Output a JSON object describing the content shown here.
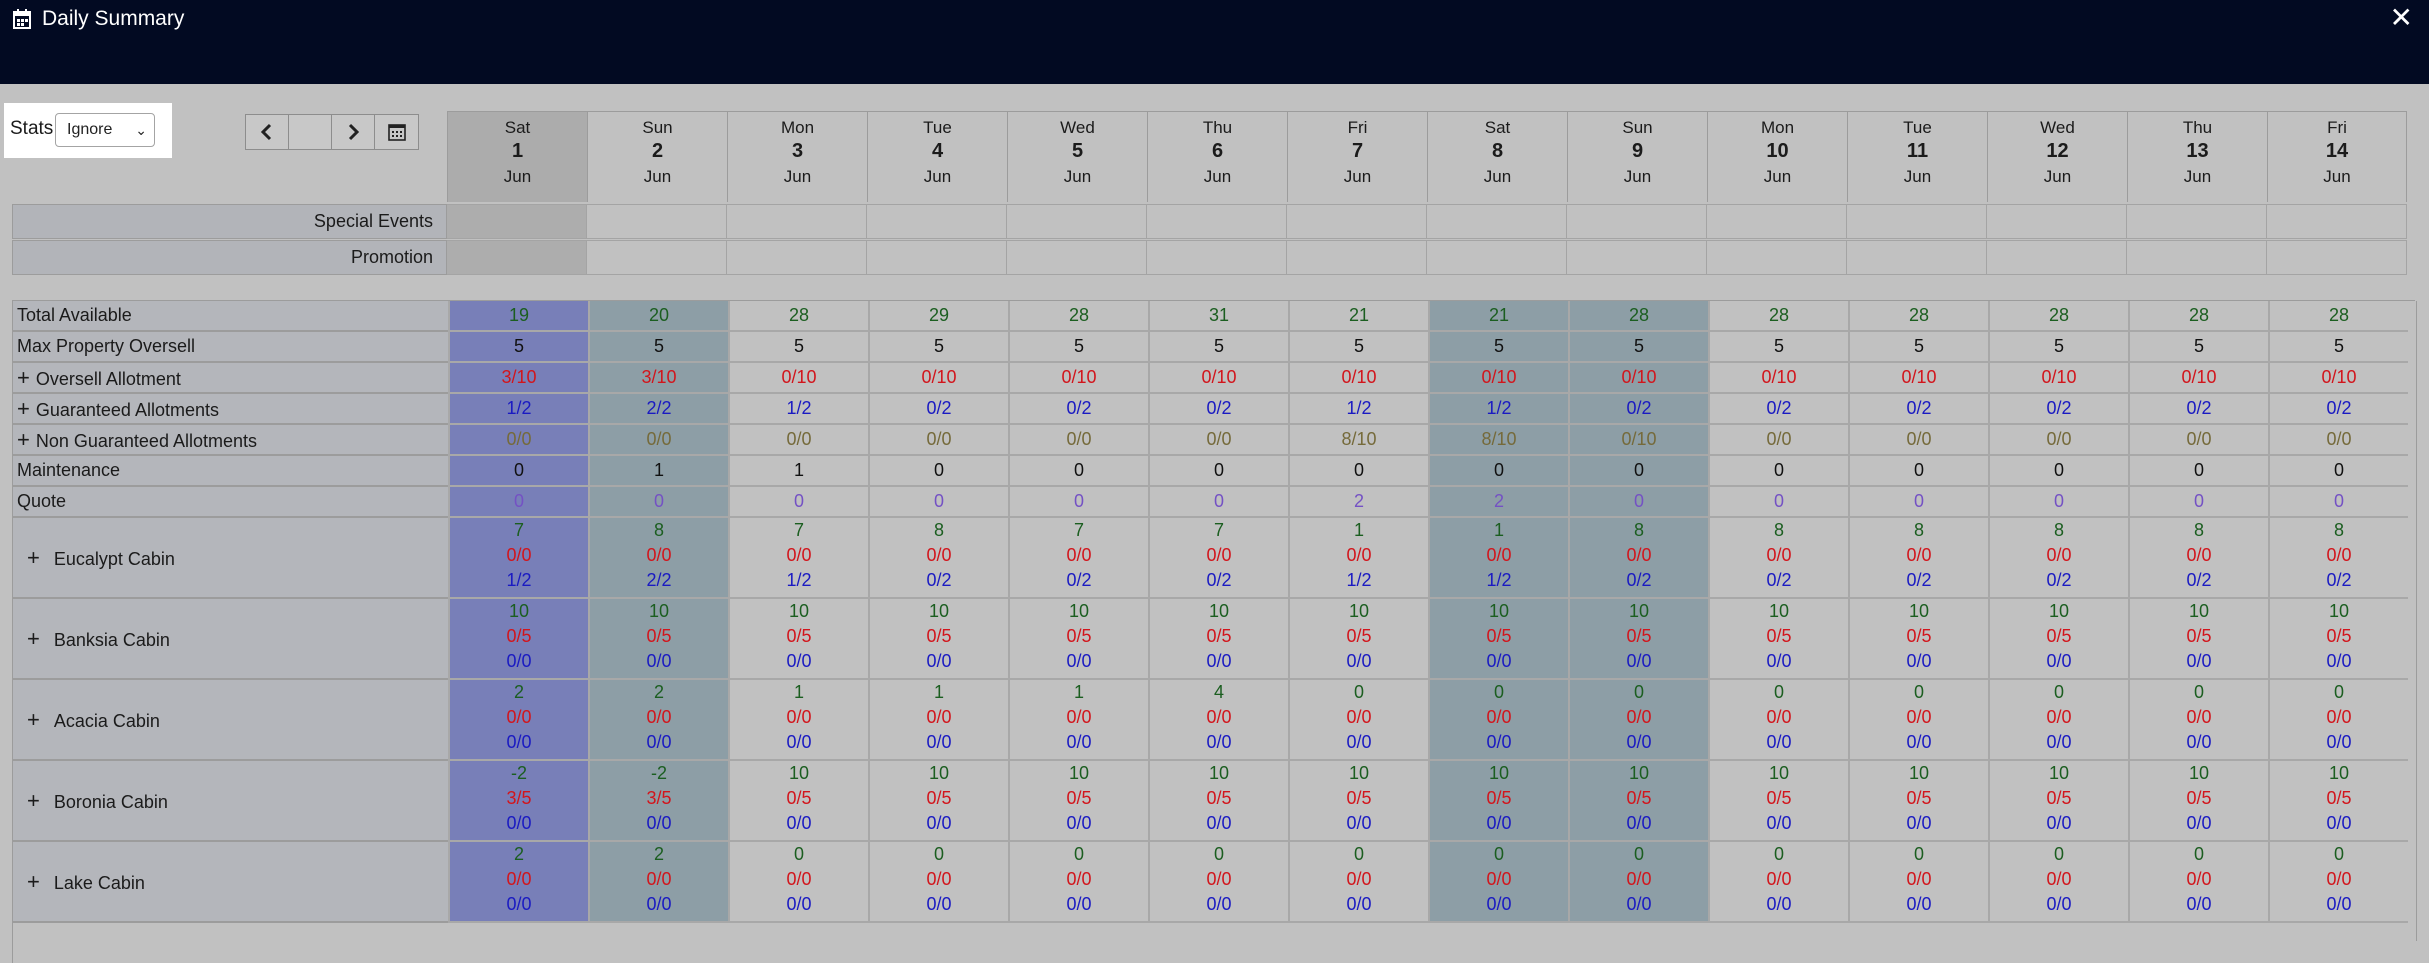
{
  "window": {
    "title": "Daily Summary",
    "close_icon": "close-icon",
    "title_icon": "calendar-icon"
  },
  "stats": {
    "label": "Stats",
    "selected": "Ignore"
  },
  "nav": {
    "prev_icon": "chevron-left-icon",
    "next_icon": "chevron-right-icon",
    "calendar_icon": "calendar-icon"
  },
  "dates": [
    {
      "dow": "Sat",
      "day": "1",
      "mon": "Jun"
    },
    {
      "dow": "Sun",
      "day": "2",
      "mon": "Jun"
    },
    {
      "dow": "Mon",
      "day": "3",
      "mon": "Jun"
    },
    {
      "dow": "Tue",
      "day": "4",
      "mon": "Jun"
    },
    {
      "dow": "Wed",
      "day": "5",
      "mon": "Jun"
    },
    {
      "dow": "Thu",
      "day": "6",
      "mon": "Jun"
    },
    {
      "dow": "Fri",
      "day": "7",
      "mon": "Jun"
    },
    {
      "dow": "Sat",
      "day": "8",
      "mon": "Jun"
    },
    {
      "dow": "Sun",
      "day": "9",
      "mon": "Jun"
    },
    {
      "dow": "Mon",
      "day": "10",
      "mon": "Jun"
    },
    {
      "dow": "Tue",
      "day": "11",
      "mon": "Jun"
    },
    {
      "dow": "Wed",
      "day": "12",
      "mon": "Jun"
    },
    {
      "dow": "Thu",
      "day": "13",
      "mon": "Jun"
    },
    {
      "dow": "Fri",
      "day": "14",
      "mon": "Jun"
    }
  ],
  "events": [
    {
      "label": "Special Events"
    },
    {
      "label": "Promotion"
    }
  ],
  "rows": [
    {
      "label": "Total Available",
      "expand": false,
      "color": "green",
      "values": [
        "19",
        "20",
        "28",
        "29",
        "28",
        "31",
        "21",
        "21",
        "28",
        "28",
        "28",
        "28",
        "28",
        "28"
      ]
    },
    {
      "label": "Max Property Oversell",
      "expand": false,
      "color": "black",
      "values": [
        "5",
        "5",
        "5",
        "5",
        "5",
        "5",
        "5",
        "5",
        "5",
        "5",
        "5",
        "5",
        "5",
        "5"
      ]
    },
    {
      "label": "Oversell Allotment",
      "expand": true,
      "color": "red",
      "values": [
        "3/10",
        "3/10",
        "0/10",
        "0/10",
        "0/10",
        "0/10",
        "0/10",
        "0/10",
        "0/10",
        "0/10",
        "0/10",
        "0/10",
        "0/10",
        "0/10"
      ]
    },
    {
      "label": "Guaranteed Allotments",
      "expand": true,
      "color": "blue",
      "values": [
        "1/2",
        "2/2",
        "1/2",
        "0/2",
        "0/2",
        "0/2",
        "1/2",
        "1/2",
        "0/2",
        "0/2",
        "0/2",
        "0/2",
        "0/2",
        "0/2"
      ]
    },
    {
      "label": "Non Guaranteed Allotments",
      "expand": true,
      "color": "olive",
      "values": [
        "0/0",
        "0/0",
        "0/0",
        "0/0",
        "0/0",
        "0/0",
        "8/10",
        "8/10",
        "0/10",
        "0/0",
        "0/0",
        "0/0",
        "0/0",
        "0/0"
      ]
    },
    {
      "label": "Maintenance",
      "expand": false,
      "color": "black",
      "values": [
        "0",
        "1",
        "1",
        "0",
        "0",
        "0",
        "0",
        "0",
        "0",
        "0",
        "0",
        "0",
        "0",
        "0"
      ]
    },
    {
      "label": "Quote",
      "expand": false,
      "color": "purple",
      "values": [
        "0",
        "0",
        "0",
        "0",
        "0",
        "0",
        "2",
        "2",
        "0",
        "0",
        "0",
        "0",
        "0",
        "0"
      ]
    }
  ],
  "rooms": [
    {
      "label": "Eucalypt Cabin",
      "avail": [
        "7",
        "8",
        "7",
        "8",
        "7",
        "7",
        "1",
        "1",
        "8",
        "8",
        "8",
        "8",
        "8",
        "8"
      ],
      "over": [
        "0/0",
        "0/0",
        "0/0",
        "0/0",
        "0/0",
        "0/0",
        "0/0",
        "0/0",
        "0/0",
        "0/0",
        "0/0",
        "0/0",
        "0/0",
        "0/0"
      ],
      "guar": [
        "1/2",
        "2/2",
        "1/2",
        "0/2",
        "0/2",
        "0/2",
        "1/2",
        "1/2",
        "0/2",
        "0/2",
        "0/2",
        "0/2",
        "0/2",
        "0/2"
      ]
    },
    {
      "label": "Banksia Cabin",
      "avail": [
        "10",
        "10",
        "10",
        "10",
        "10",
        "10",
        "10",
        "10",
        "10",
        "10",
        "10",
        "10",
        "10",
        "10"
      ],
      "over": [
        "0/5",
        "0/5",
        "0/5",
        "0/5",
        "0/5",
        "0/5",
        "0/5",
        "0/5",
        "0/5",
        "0/5",
        "0/5",
        "0/5",
        "0/5",
        "0/5"
      ],
      "guar": [
        "0/0",
        "0/0",
        "0/0",
        "0/0",
        "0/0",
        "0/0",
        "0/0",
        "0/0",
        "0/0",
        "0/0",
        "0/0",
        "0/0",
        "0/0",
        "0/0"
      ]
    },
    {
      "label": "Acacia Cabin",
      "avail": [
        "2",
        "2",
        "1",
        "1",
        "1",
        "4",
        "0",
        "0",
        "0",
        "0",
        "0",
        "0",
        "0",
        "0"
      ],
      "over": [
        "0/0",
        "0/0",
        "0/0",
        "0/0",
        "0/0",
        "0/0",
        "0/0",
        "0/0",
        "0/0",
        "0/0",
        "0/0",
        "0/0",
        "0/0",
        "0/0"
      ],
      "guar": [
        "0/0",
        "0/0",
        "0/0",
        "0/0",
        "0/0",
        "0/0",
        "0/0",
        "0/0",
        "0/0",
        "0/0",
        "0/0",
        "0/0",
        "0/0",
        "0/0"
      ]
    },
    {
      "label": "Boronia Cabin",
      "avail": [
        "-2",
        "-2",
        "10",
        "10",
        "10",
        "10",
        "10",
        "10",
        "10",
        "10",
        "10",
        "10",
        "10",
        "10"
      ],
      "over": [
        "3/5",
        "3/5",
        "0/5",
        "0/5",
        "0/5",
        "0/5",
        "0/5",
        "0/5",
        "0/5",
        "0/5",
        "0/5",
        "0/5",
        "0/5",
        "0/5"
      ],
      "guar": [
        "0/0",
        "0/0",
        "0/0",
        "0/0",
        "0/0",
        "0/0",
        "0/0",
        "0/0",
        "0/0",
        "0/0",
        "0/0",
        "0/0",
        "0/0",
        "0/0"
      ]
    },
    {
      "label": "Lake Cabin",
      "avail": [
        "2",
        "2",
        "0",
        "0",
        "0",
        "0",
        "0",
        "0",
        "0",
        "0",
        "0",
        "0",
        "0",
        "0"
      ],
      "over": [
        "0/0",
        "0/0",
        "0/0",
        "0/0",
        "0/0",
        "0/0",
        "0/0",
        "0/0",
        "0/0",
        "0/0",
        "0/0",
        "0/0",
        "0/0",
        "0/0"
      ],
      "guar": [
        "0/0",
        "0/0",
        "0/0",
        "0/0",
        "0/0",
        "0/0",
        "0/0",
        "0/0",
        "0/0",
        "0/0",
        "0/0",
        "0/0",
        "0/0",
        "0/0"
      ]
    }
  ],
  "colors": {
    "titlebar": "#020a22",
    "selected_col": "#787fb8",
    "weekend_col": "#8d9ea6"
  }
}
